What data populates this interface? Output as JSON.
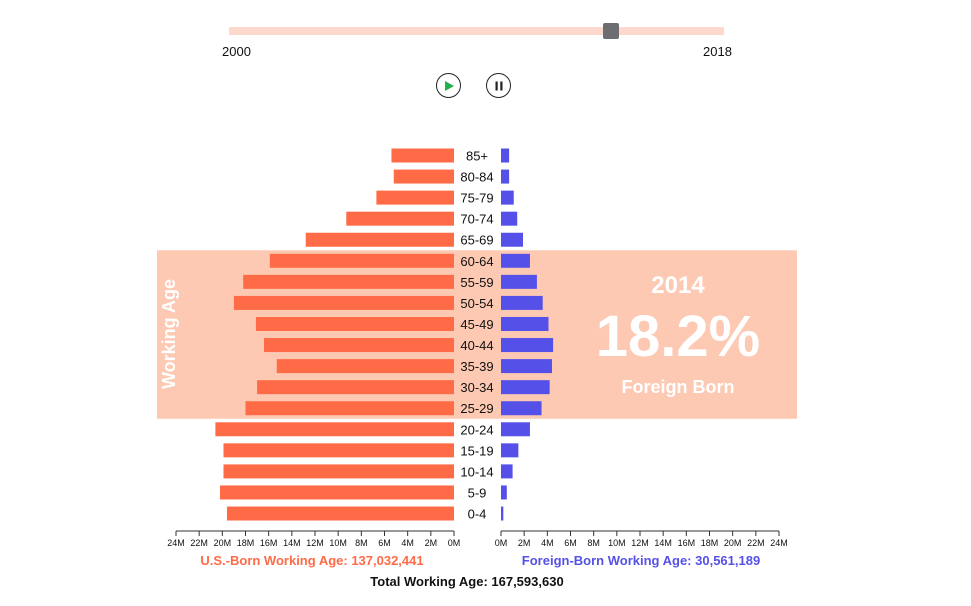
{
  "timeline": {
    "start_label": "2000",
    "end_label": "2018",
    "current_year": 2014
  },
  "controls": {
    "play_icon": "play-icon",
    "pause_icon": "pause-icon"
  },
  "colors": {
    "us_born": "#ff6b47",
    "foreign_born": "#5551e8",
    "working_age_band": "#fdc9b2",
    "slider_track": "#fcd9cc",
    "slider_thumb": "#6d6d72"
  },
  "highlight": {
    "band_label": "Working Age",
    "year": "2014",
    "percent": "18.2%",
    "caption": "Foreign Born"
  },
  "summary": {
    "us_born": "U.S.-Born Working Age: 137,032,441",
    "foreign_born": "Foreign-Born Working Age: 30,561,189",
    "total": "Total Working Age: 167,593,630"
  },
  "chart_data": {
    "type": "bar",
    "orientation": "horizontal-population-pyramid",
    "categories": [
      "85+",
      "80-84",
      "75-79",
      "70-74",
      "65-69",
      "60-64",
      "55-59",
      "50-54",
      "45-49",
      "40-44",
      "35-39",
      "30-34",
      "25-29",
      "20-24",
      "15-19",
      "10-14",
      "5-9",
      "0-4"
    ],
    "series": [
      {
        "name": "U.S.-Born",
        "side": "left",
        "values": [
          5.4,
          5.2,
          6.7,
          9.3,
          12.8,
          15.9,
          18.2,
          19.0,
          17.1,
          16.4,
          15.3,
          17.0,
          18.0,
          20.6,
          19.9,
          19.9,
          20.2,
          19.6
        ]
      },
      {
        "name": "Foreign-Born",
        "side": "right",
        "values": [
          0.7,
          0.7,
          1.1,
          1.4,
          1.9,
          2.5,
          3.1,
          3.6,
          4.1,
          4.5,
          4.4,
          4.2,
          3.5,
          2.5,
          1.5,
          1.0,
          0.5,
          0.2
        ]
      }
    ],
    "left_axis": {
      "ticks": [
        "24M",
        "22M",
        "20M",
        "18M",
        "16M",
        "14M",
        "12M",
        "10M",
        "8M",
        "6M",
        "4M",
        "2M",
        "0M"
      ],
      "range": [
        24,
        0
      ]
    },
    "right_axis": {
      "ticks": [
        "0M",
        "2M",
        "4M",
        "6M",
        "8M",
        "10M",
        "12M",
        "14M",
        "16M",
        "18M",
        "20M",
        "22M",
        "24M"
      ],
      "range": [
        0,
        24
      ]
    },
    "working_age_groups": [
      "25-29",
      "60-64"
    ],
    "grid": false
  }
}
